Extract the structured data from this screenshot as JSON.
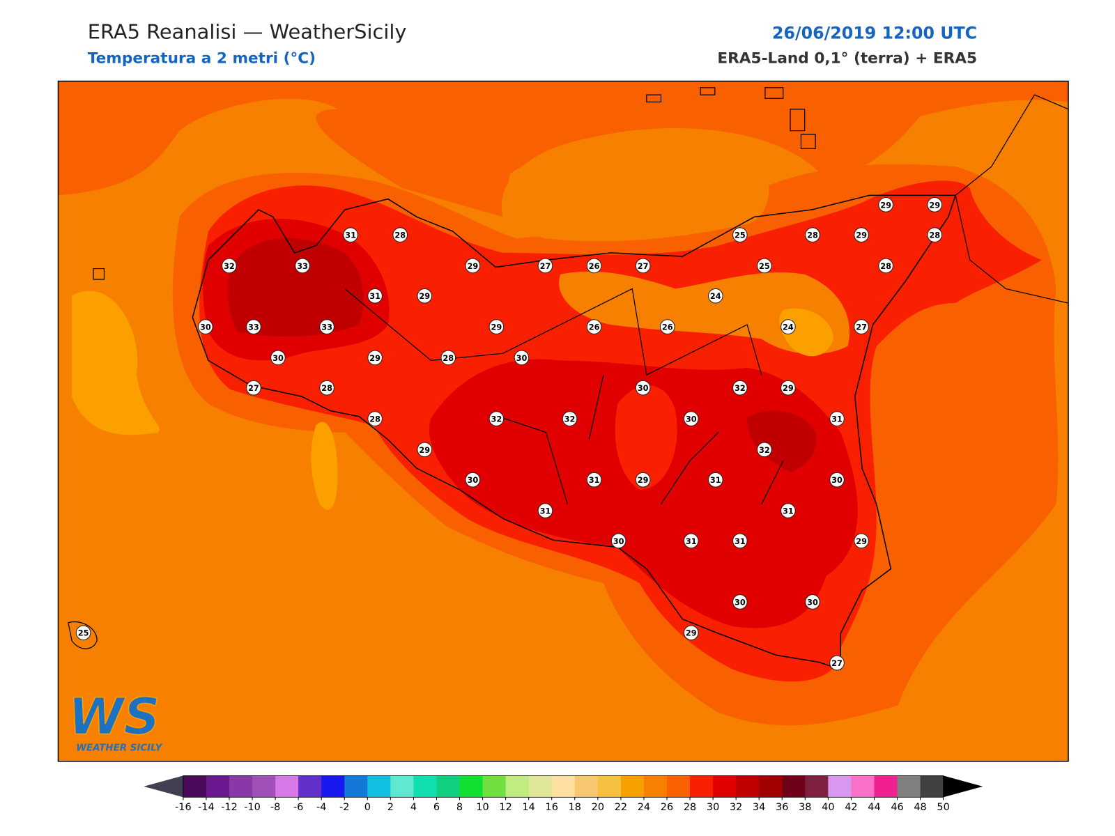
{
  "header": {
    "title": "ERA5 Reanalisi — WeatherSicily",
    "subtitle": "Temperatura a 2 metri (°C)",
    "datetime": "26/06/2019 12:00 UTC",
    "source": "ERA5-Land 0,1° (terra) + ERA5"
  },
  "map": {
    "stations": [
      31,
      28,
      32,
      33,
      29,
      27,
      26,
      27,
      25,
      28,
      29,
      29,
      29,
      28,
      25,
      28,
      31,
      29,
      24,
      30,
      33,
      33,
      29,
      26,
      26,
      24,
      27,
      30,
      29,
      28,
      30,
      27,
      28,
      30,
      32,
      29,
      28,
      32,
      32,
      30,
      31,
      29,
      32,
      30,
      31,
      29,
      31,
      30,
      31,
      31,
      30,
      31,
      31,
      29,
      30,
      30,
      29,
      27,
      25
    ]
  },
  "logo": {
    "mark": "WS",
    "text": "WEATHER SICILY"
  },
  "colorbar": {
    "ticks": [
      -16,
      -14,
      -12,
      -10,
      -8,
      -6,
      -4,
      -2,
      0,
      2,
      4,
      6,
      8,
      10,
      12,
      14,
      16,
      18,
      20,
      22,
      24,
      26,
      28,
      30,
      32,
      34,
      36,
      38,
      40,
      42,
      44,
      46,
      48,
      50
    ],
    "colors": [
      "#4a0a5a",
      "#6a1890",
      "#8838a8",
      "#a050b8",
      "#d878e8",
      "#6030c8",
      "#1818f0",
      "#1478d8",
      "#10c0e0",
      "#60e8d0",
      "#10e0b0",
      "#10d080",
      "#10e030",
      "#70e040",
      "#c0ec80",
      "#e0e898",
      "#ffe0a0",
      "#f8c870",
      "#f8c040",
      "#f8a000",
      "#f88000",
      "#f86000",
      "#f82000",
      "#e00000",
      "#c00000",
      "#a00000",
      "#700018",
      "#802040",
      "#d898f0",
      "#f870c8",
      "#f02090",
      "#808080",
      "#404040"
    ],
    "under": "#404050",
    "over": "#000000"
  }
}
